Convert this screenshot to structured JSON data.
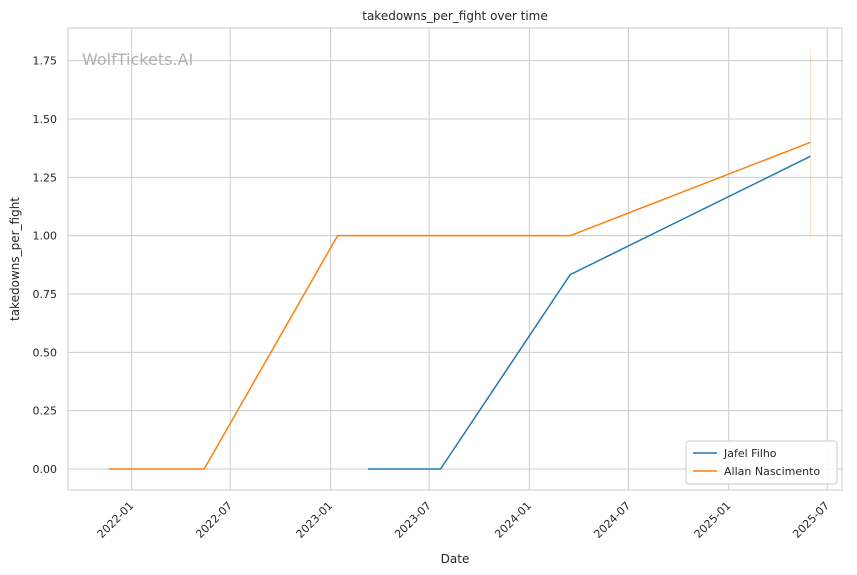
{
  "chart_data": {
    "type": "line",
    "title": "takedowns_per_fight over time",
    "xlabel": "Date",
    "ylabel": "takedowns_per_fight",
    "watermark": "WolfTickets.AI",
    "x_ticks": [
      "2022-01",
      "2022-07",
      "2023-01",
      "2023-07",
      "2024-01",
      "2024-07",
      "2025-01",
      "2025-07"
    ],
    "y_ticks": [
      "0.00",
      "0.25",
      "0.50",
      "0.75",
      "1.00",
      "1.25",
      "1.50",
      "1.75"
    ],
    "xlim": [
      "2021-09-06",
      "2025-07-28"
    ],
    "ylim": [
      -0.09,
      1.89
    ],
    "grid": true,
    "legend_position": "lower-right",
    "series": [
      {
        "name": "Jafel Filho",
        "color": "#1f77b4",
        "points": [
          {
            "date": "2023-03-11",
            "value": 0.0
          },
          {
            "date": "2023-07-22",
            "value": 0.0
          },
          {
            "date": "2024-03-16",
            "value": 0.833
          },
          {
            "date": "2025-05-31",
            "value": 1.34
          }
        ]
      },
      {
        "name": "Allan Nascimento",
        "color": "#ff7f0e",
        "points": [
          {
            "date": "2021-11-20",
            "value": 0.0
          },
          {
            "date": "2022-05-14",
            "value": 0.0
          },
          {
            "date": "2023-01-14",
            "value": 1.0
          },
          {
            "date": "2024-03-16",
            "value": 1.0
          },
          {
            "date": "2025-05-31",
            "value": 1.4
          }
        ]
      }
    ],
    "annotation_band": {
      "date": "2025-05-31",
      "from": 1.0,
      "to": 1.8,
      "color": "#ff7f0e"
    }
  }
}
